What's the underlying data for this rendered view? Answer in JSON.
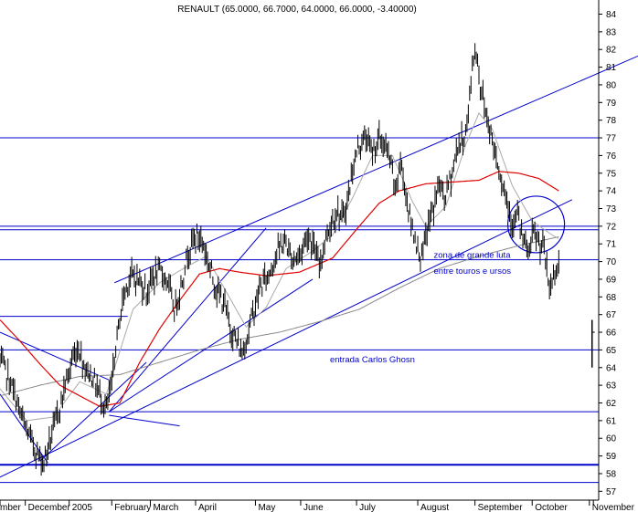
{
  "chart_data": {
    "type": "line",
    "title": "RENAULT (65.0000, 66.7000, 64.0000, 66.0000, -3.40000)",
    "ylim": [
      56.5,
      84.8
    ],
    "y_ticks": [
      57,
      58,
      59,
      60,
      61,
      62,
      63,
      64,
      65,
      66,
      67,
      68,
      69,
      70,
      71,
      72,
      73,
      74,
      75,
      76,
      77,
      78,
      79,
      80,
      81,
      82,
      83,
      84
    ],
    "x_ticks": [
      {
        "label": "November",
        "shown": "mber",
        "idx": 0
      },
      {
        "label": "December",
        "shown": "December",
        "idx": 19
      },
      {
        "label": "2005",
        "shown": "2005",
        "idx": 52
      },
      {
        "label": "February",
        "shown": "February",
        "idx": 84
      },
      {
        "label": "March",
        "shown": "March",
        "idx": 113
      },
      {
        "label": "April",
        "shown": "April",
        "idx": 147
      },
      {
        "label": "May",
        "shown": "May",
        "idx": 192
      },
      {
        "label": "June",
        "shown": "June",
        "idx": 226
      },
      {
        "label": "July",
        "shown": "July",
        "idx": 268
      },
      {
        "label": "August",
        "shown": "August",
        "idx": 314
      },
      {
        "label": "September",
        "shown": "September",
        "idx": 357
      },
      {
        "label": "October",
        "shown": "October",
        "idx": 400
      },
      {
        "label": "November",
        "shown": "November",
        "idx": 443
      }
    ],
    "price_anchors": [
      [
        0,
        64.4
      ],
      [
        6,
        63.5
      ],
      [
        12,
        62.2
      ],
      [
        18,
        60.8
      ],
      [
        24,
        59.8
      ],
      [
        29,
        59.0
      ],
      [
        33,
        58.7
      ],
      [
        38,
        60.0
      ],
      [
        44,
        61.5
      ],
      [
        50,
        63.3
      ],
      [
        55,
        64.6
      ],
      [
        59,
        65.1
      ],
      [
        64,
        64.0
      ],
      [
        70,
        63.4
      ],
      [
        76,
        62.3
      ],
      [
        80,
        61.6
      ],
      [
        84,
        63.0
      ],
      [
        88,
        65.8
      ],
      [
        93,
        68.1
      ],
      [
        98,
        69.2
      ],
      [
        104,
        69.0
      ],
      [
        110,
        68.3
      ],
      [
        116,
        69.2
      ],
      [
        121,
        69.4
      ],
      [
        126,
        68.9
      ],
      [
        131,
        67.2
      ],
      [
        136,
        68.6
      ],
      [
        141,
        70.5
      ],
      [
        147,
        71.5
      ],
      [
        152,
        71.2
      ],
      [
        156,
        70.1
      ],
      [
        160,
        69.1
      ],
      [
        164,
        68.2
      ],
      [
        168,
        67.7
      ],
      [
        173,
        66.3
      ],
      [
        178,
        65.4
      ],
      [
        182,
        64.8
      ],
      [
        186,
        65.8
      ],
      [
        190,
        67.1
      ],
      [
        196,
        68.6
      ],
      [
        202,
        69.3
      ],
      [
        208,
        70.5
      ],
      [
        214,
        71.2
      ],
      [
        220,
        70.1
      ],
      [
        226,
        70.5
      ],
      [
        231,
        71.6
      ],
      [
        236,
        70.8
      ],
      [
        240,
        69.7
      ],
      [
        244,
        71.2
      ],
      [
        248,
        72.0
      ],
      [
        253,
        72.9
      ],
      [
        258,
        72.4
      ],
      [
        262,
        73.8
      ],
      [
        266,
        75.6
      ],
      [
        270,
        76.6
      ],
      [
        275,
        77.0
      ],
      [
        280,
        76.2
      ],
      [
        285,
        77.0
      ],
      [
        289,
        76.5
      ],
      [
        293,
        75.8
      ],
      [
        297,
        74.0
      ],
      [
        301,
        75.6
      ],
      [
        305,
        73.9
      ],
      [
        309,
        72.1
      ],
      [
        313,
        71.1
      ],
      [
        317,
        70.1
      ],
      [
        321,
        71.8
      ],
      [
        326,
        73.1
      ],
      [
        330,
        74.4
      ],
      [
        334,
        73.6
      ],
      [
        339,
        74.8
      ],
      [
        344,
        76.5
      ],
      [
        349,
        77.0
      ],
      [
        352,
        78.3
      ],
      [
        355,
        81.2
      ],
      [
        358,
        82.0
      ],
      [
        361,
        80.0
      ],
      [
        365,
        78.5
      ],
      [
        369,
        77.2
      ],
      [
        373,
        76.0
      ],
      [
        377,
        74.6
      ],
      [
        381,
        73.6
      ],
      [
        385,
        72.2
      ],
      [
        389,
        72.6
      ],
      [
        393,
        71.2
      ],
      [
        397,
        70.4
      ],
      [
        401,
        71.6
      ],
      [
        405,
        71.0
      ],
      [
        409,
        70.6
      ],
      [
        413,
        68.3
      ],
      [
        417,
        69.5
      ],
      [
        420,
        69.8
      ]
    ],
    "last_bar": {
      "high": 66.7,
      "low": 64.0,
      "close": 66.0
    },
    "ma_short_anchors": [
      [
        0,
        62.8
      ],
      [
        20,
        61.0
      ],
      [
        40,
        61.2
      ],
      [
        60,
        63.2
      ],
      [
        80,
        62.5
      ],
      [
        100,
        67.3
      ],
      [
        120,
        68.8
      ],
      [
        140,
        69.7
      ],
      [
        155,
        70.3
      ],
      [
        170,
        68.3
      ],
      [
        185,
        66.3
      ],
      [
        200,
        67.4
      ],
      [
        215,
        69.6
      ],
      [
        235,
        70.6
      ],
      [
        250,
        71.5
      ],
      [
        265,
        73.6
      ],
      [
        280,
        76.0
      ],
      [
        295,
        76.0
      ],
      [
        310,
        73.4
      ],
      [
        320,
        72.0
      ],
      [
        335,
        73.1
      ],
      [
        350,
        76.6
      ],
      [
        360,
        78.4
      ],
      [
        370,
        77.5
      ],
      [
        385,
        74.3
      ],
      [
        400,
        72.3
      ],
      [
        415,
        71.5
      ],
      [
        420,
        71.3
      ]
    ],
    "ma_red_anchors": [
      [
        0,
        66.7
      ],
      [
        15,
        65.5
      ],
      [
        30,
        64.2
      ],
      [
        45,
        63.0
      ],
      [
        60,
        62.4
      ],
      [
        75,
        61.8
      ],
      [
        90,
        62.0
      ],
      [
        105,
        64.3
      ],
      [
        120,
        66.2
      ],
      [
        135,
        67.8
      ],
      [
        150,
        69.3
      ],
      [
        165,
        69.6
      ],
      [
        180,
        69.4
      ],
      [
        200,
        69.2
      ],
      [
        225,
        69.4
      ],
      [
        250,
        70.2
      ],
      [
        270,
        72.0
      ],
      [
        285,
        73.3
      ],
      [
        300,
        74.0
      ],
      [
        320,
        74.4
      ],
      [
        340,
        74.5
      ],
      [
        360,
        74.6
      ],
      [
        375,
        75.1
      ],
      [
        390,
        75.0
      ],
      [
        405,
        74.7
      ],
      [
        420,
        74.0
      ]
    ],
    "ma_gray_anchors": [
      [
        0,
        62.4
      ],
      [
        30,
        63.0
      ],
      [
        60,
        63.5
      ],
      [
        90,
        63.6
      ],
      [
        120,
        64.3
      ],
      [
        150,
        65.0
      ],
      [
        180,
        65.6
      ],
      [
        210,
        66.0
      ],
      [
        240,
        66.6
      ],
      [
        270,
        67.3
      ],
      [
        300,
        68.5
      ],
      [
        330,
        69.6
      ],
      [
        360,
        70.3
      ],
      [
        390,
        70.9
      ],
      [
        420,
        71.4
      ]
    ],
    "horizontal_levels": [
      77.0,
      72.0,
      71.8,
      70.1,
      65.0,
      61.5,
      58.5,
      57.5
    ],
    "short_segments": [
      {
        "from_idx": 0,
        "to_idx": 96,
        "y": 66.9
      }
    ],
    "trendlines": [
      {
        "name": "upper-channel",
        "from": [
          86,
          68.8
        ],
        "to": [
          543,
          83.7
        ]
      },
      {
        "name": "lower-channel",
        "from": [
          0,
          57.8
        ],
        "to": [
          430,
          73.5
        ]
      },
      {
        "name": "fan-steep",
        "from": [
          30,
          58.7
        ],
        "to": [
          110,
          64.3
        ]
      },
      {
        "name": "fan-mid",
        "from": [
          82,
          61.5
        ],
        "to": [
          200,
          71.9
        ]
      },
      {
        "name": "fan-flat",
        "from": [
          82,
          61.5
        ],
        "to": [
          235,
          69.0
        ]
      },
      {
        "name": "down-left",
        "from": [
          0,
          66.0
        ],
        "to": [
          82,
          63.3
        ]
      },
      {
        "name": "v-left",
        "from": [
          0,
          62.5
        ],
        "to": [
          36,
          58.6
        ]
      },
      {
        "name": "fan-low",
        "from": [
          82,
          61.3
        ],
        "to": [
          135,
          60.7
        ]
      }
    ],
    "circle": {
      "cx_idx": 403,
      "cy_value": 72.1,
      "r_px": 31
    },
    "annotations": [
      {
        "text": "entrada Carlos Ghosn",
        "idx": 248,
        "y": 64.3
      },
      {
        "text": "zona de grande luta",
        "idx": 326,
        "y": 70.2
      },
      {
        "text": "entre touros e ursos",
        "idx": 326,
        "y": 69.3
      }
    ],
    "grid": false,
    "legend": "none",
    "colors": {
      "price": "#000000",
      "ma_short": "#aaaaaa",
      "ma_red": "#e00000",
      "ma_gray": "#888888",
      "drawings": "#0000cc",
      "axis": "#000000"
    }
  }
}
